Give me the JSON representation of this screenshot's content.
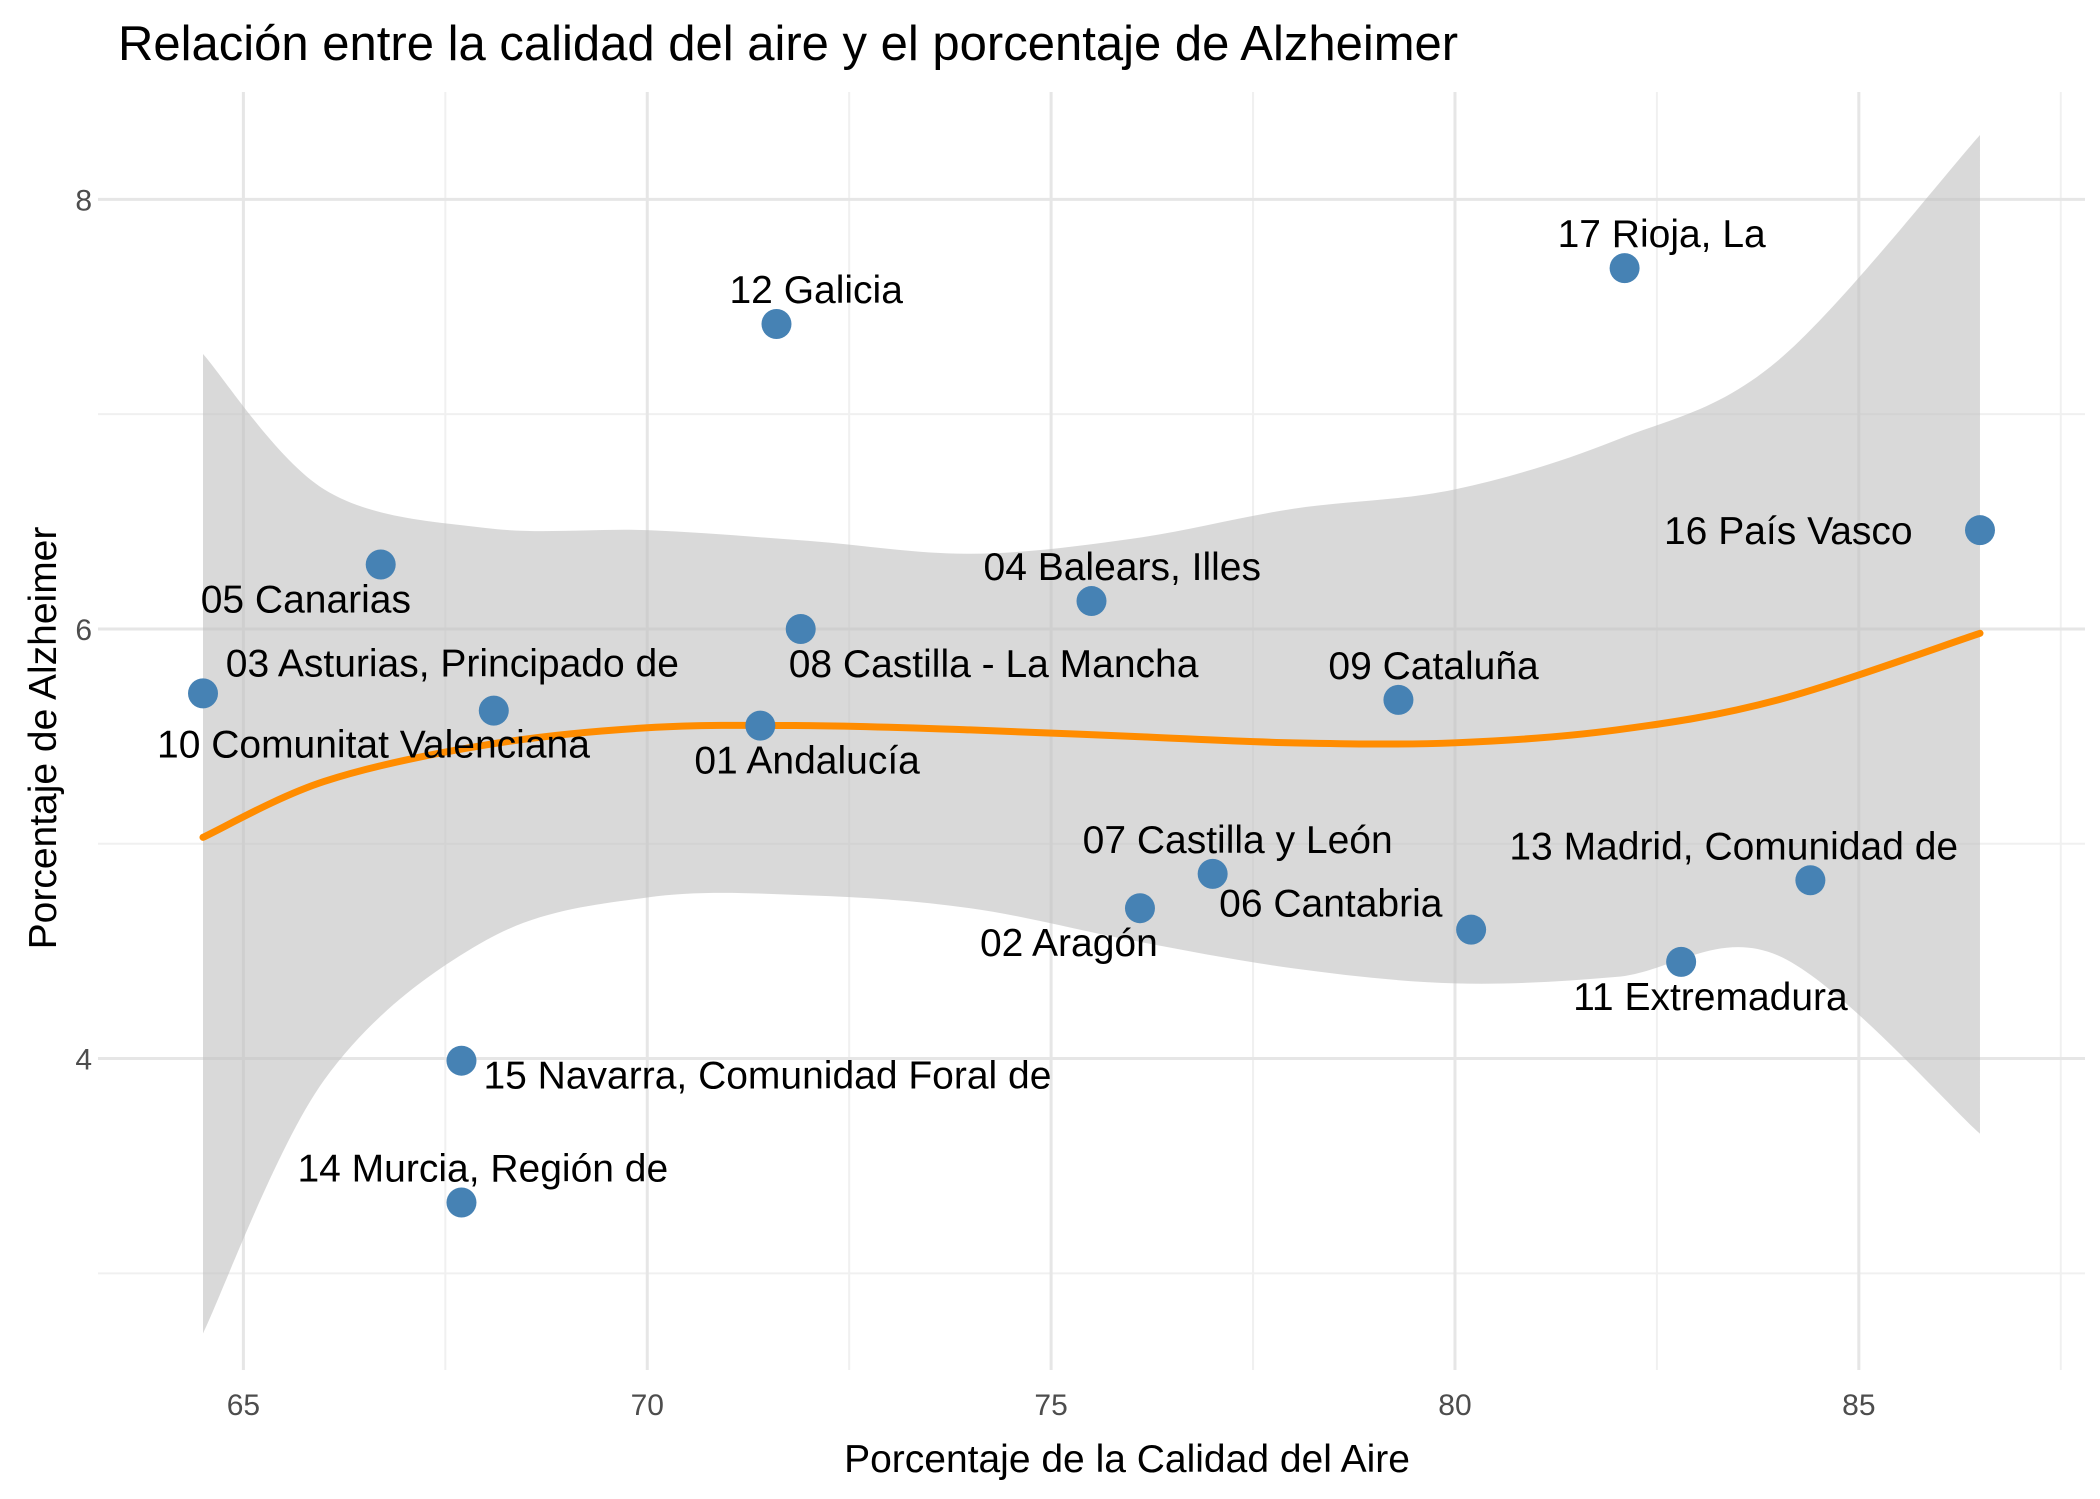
{
  "chart_data": {
    "type": "scatter",
    "title": "Relación entre la calidad del aire y el porcentaje de Alzheimer",
    "xlabel": "Porcentaje de la Calidad del Aire",
    "ylabel": "Porcentaje de Alzheimer",
    "xlim": [
      63.2,
      87.8
    ],
    "ylim": [
      2.55,
      8.5
    ],
    "x_ticks": [
      65,
      70,
      75,
      80,
      85
    ],
    "y_ticks": [
      4,
      6,
      8
    ],
    "grid": true,
    "colors": {
      "point": "#4682b4",
      "smooth_line": "#ff8c00",
      "confidence_band": "#bfbfbf",
      "grid": "#e6e6e6"
    },
    "points": [
      {
        "label": "01 Andalucía",
        "x": 71.4,
        "y": 5.55,
        "label_pos": "below-right"
      },
      {
        "label": "02 Aragón",
        "x": 76.1,
        "y": 4.7,
        "label_pos": "below-left"
      },
      {
        "label": "03 Asturias, Principado de",
        "x": 68.1,
        "y": 5.62,
        "label_pos": "above"
      },
      {
        "label": "04 Balears, Illes",
        "x": 75.5,
        "y": 6.13,
        "label_pos": "above-right"
      },
      {
        "label": "05 Canarias",
        "x": 66.7,
        "y": 6.3,
        "label_pos": "below-left"
      },
      {
        "label": "06 Cantabria",
        "x": 80.2,
        "y": 4.6,
        "label_pos": "above-left"
      },
      {
        "label": "07 Castilla y León",
        "x": 77.0,
        "y": 4.86,
        "label_pos": "above-right"
      },
      {
        "label": "08 Castilla - La Mancha",
        "x": 71.9,
        "y": 6.0,
        "label_pos": "below-right"
      },
      {
        "label": "09 Cataluña",
        "x": 79.3,
        "y": 5.67,
        "label_pos": "above-right"
      },
      {
        "label": "10 Comunitat Valenciana",
        "x": 64.5,
        "y": 5.7,
        "label_pos": "below-right"
      },
      {
        "label": "11 Extremadura",
        "x": 82.8,
        "y": 4.45,
        "label_pos": "below-right"
      },
      {
        "label": "12 Galicia",
        "x": 71.6,
        "y": 7.42,
        "label_pos": "above-right"
      },
      {
        "label": "13 Madrid, Comunidad de",
        "x": 84.4,
        "y": 4.83,
        "label_pos": "above-left"
      },
      {
        "label": "14 Murcia, Región de",
        "x": 67.7,
        "y": 3.33,
        "label_pos": "above-right"
      },
      {
        "label": "15 Navarra, Comunidad Foral de",
        "x": 67.7,
        "y": 3.99,
        "label_pos": "below-right"
      },
      {
        "label": "16 País Vasco",
        "x": 86.5,
        "y": 6.46,
        "label_pos": "left"
      },
      {
        "label": "17 Rioja, La",
        "x": 82.1,
        "y": 7.68,
        "label_pos": "above-right"
      }
    ],
    "smooth": {
      "x": [
        64.5,
        66,
        68,
        70,
        72,
        74,
        76,
        78,
        80,
        82,
        84,
        86.5
      ],
      "fit": [
        5.03,
        5.29,
        5.46,
        5.54,
        5.55,
        5.53,
        5.5,
        5.47,
        5.47,
        5.53,
        5.67,
        5.98
      ],
      "lower": [
        2.72,
        3.9,
        4.55,
        4.75,
        4.76,
        4.7,
        4.55,
        4.42,
        4.35,
        4.38,
        4.48,
        3.65
      ],
      "upper": [
        7.28,
        6.65,
        6.47,
        6.46,
        6.41,
        6.35,
        6.42,
        6.56,
        6.65,
        6.88,
        7.25,
        8.3
      ]
    }
  }
}
